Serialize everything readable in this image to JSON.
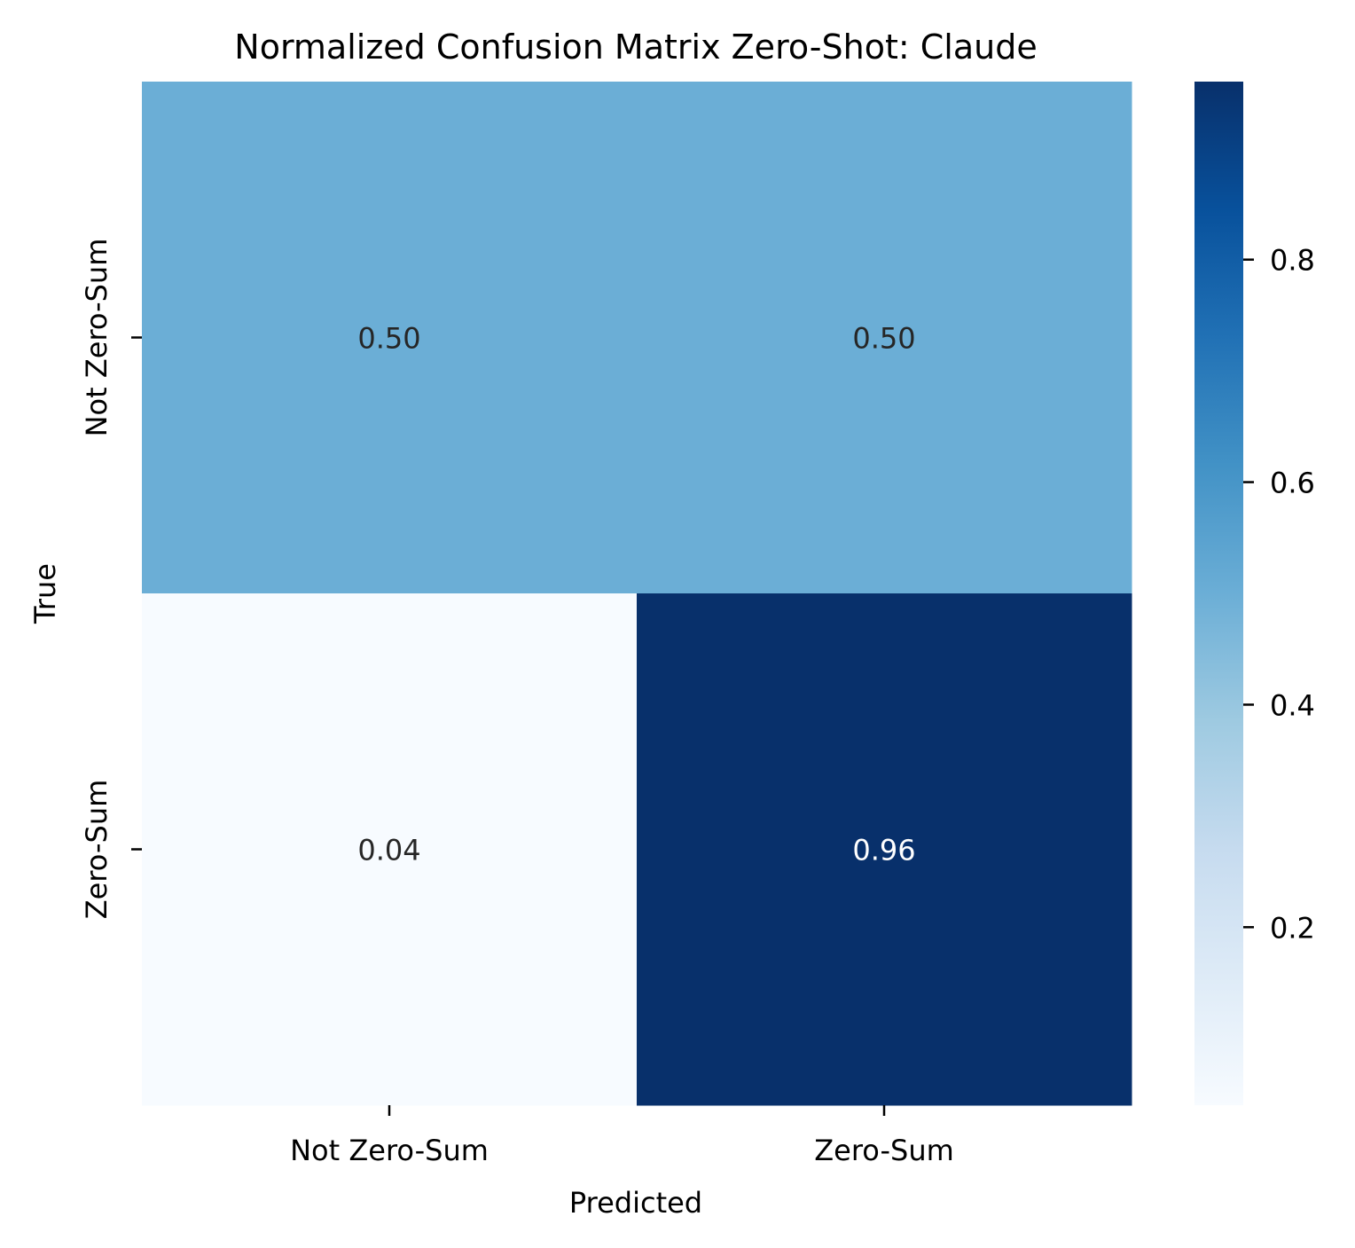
{
  "chart_data": {
    "type": "heatmap",
    "title": "Normalized Confusion Matrix Zero-Shot: Claude",
    "xlabel": "Predicted",
    "ylabel": "True",
    "x_categories": [
      "Not Zero-Sum",
      "Zero-Sum"
    ],
    "y_categories": [
      "Not Zero-Sum",
      "Zero-Sum"
    ],
    "values": [
      [
        0.5,
        0.5
      ],
      [
        0.04,
        0.96
      ]
    ],
    "cell_labels": [
      [
        "0.50",
        "0.50"
      ],
      [
        "0.04",
        "0.96"
      ]
    ],
    "colormap": "Blues",
    "colorbar": {
      "min": 0.04,
      "max": 0.96,
      "ticks": [
        0.2,
        0.4,
        0.6,
        0.8
      ],
      "tick_labels": [
        "0.2",
        "0.4",
        "0.6",
        "0.8"
      ]
    },
    "colors": {
      "light_text": "#ffffff",
      "dark_text": "#262626"
    }
  }
}
